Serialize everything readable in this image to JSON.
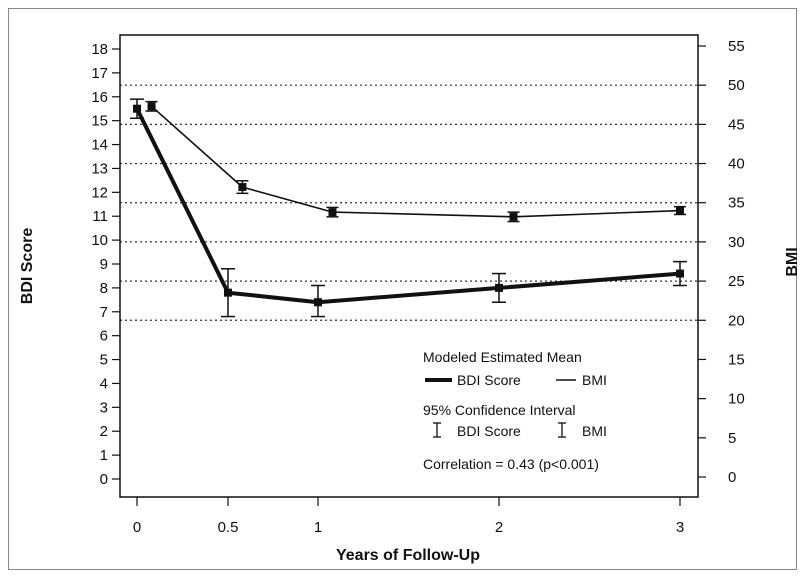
{
  "chart_data": {
    "type": "line",
    "xlabel": "Years of Follow-Up",
    "ylabel_left": "BDI Score",
    "ylabel_right": "BMI",
    "x_ticks": [
      "0",
      "0.5",
      "1",
      "2",
      "3"
    ],
    "ylim_left": [
      0,
      18
    ],
    "ylim_right": [
      0,
      55
    ],
    "y_ticks_left": [
      "0",
      "1",
      "2",
      "3",
      "4",
      "5",
      "6",
      "7",
      "8",
      "9",
      "10",
      "11",
      "12",
      "13",
      "14",
      "15",
      "16",
      "17",
      "18"
    ],
    "y_ticks_right": [
      "0",
      "5",
      "10",
      "15",
      "20",
      "25",
      "30",
      "35",
      "40",
      "45",
      "50",
      "55"
    ],
    "gridlines_right_axis": [
      20,
      25,
      30,
      35,
      40,
      45,
      50
    ],
    "grid": "dotted horizontal lines",
    "series": [
      {
        "name": "BDI Score",
        "axis": "left",
        "style": "thick",
        "points": [
          {
            "x": 0,
            "y": 15.5,
            "lo": 15.1,
            "hi": 15.9
          },
          {
            "x": 0.5,
            "y": 7.8,
            "lo": 6.8,
            "hi": 8.8
          },
          {
            "x": 1,
            "y": 7.4,
            "lo": 6.8,
            "hi": 8.1
          },
          {
            "x": 2,
            "y": 8.0,
            "lo": 7.4,
            "hi": 8.6
          },
          {
            "x": 3,
            "y": 8.6,
            "lo": 8.1,
            "hi": 9.1
          }
        ]
      },
      {
        "name": "BMI",
        "axis": "right",
        "style": "thin",
        "points": [
          {
            "x": 0.08,
            "y": 47.3,
            "lo": 46.7,
            "hi": 47.9
          },
          {
            "x": 0.58,
            "y": 37.0,
            "lo": 36.2,
            "hi": 37.8
          },
          {
            "x": 1.08,
            "y": 33.8,
            "lo": 33.2,
            "hi": 34.4
          },
          {
            "x": 2.08,
            "y": 33.2,
            "lo": 32.6,
            "hi": 33.8
          },
          {
            "x": 3.08,
            "y": 34.0,
            "lo": 33.5,
            "hi": 34.5
          }
        ]
      }
    ],
    "legend": {
      "placement": "bottom-right",
      "mean_title": "Modeled Estimated Mean",
      "mean_bdi": "BDI Score",
      "mean_bmi": "BMI",
      "ci_title": "95% Confidence Interval",
      "ci_bdi": "BDI Score",
      "ci_bmi": "BMI",
      "correlation": "Correlation = 0.43 (p<0.001)"
    },
    "colors": {
      "line": "#111111",
      "grid": "#333333",
      "background": "#ffffff"
    }
  }
}
